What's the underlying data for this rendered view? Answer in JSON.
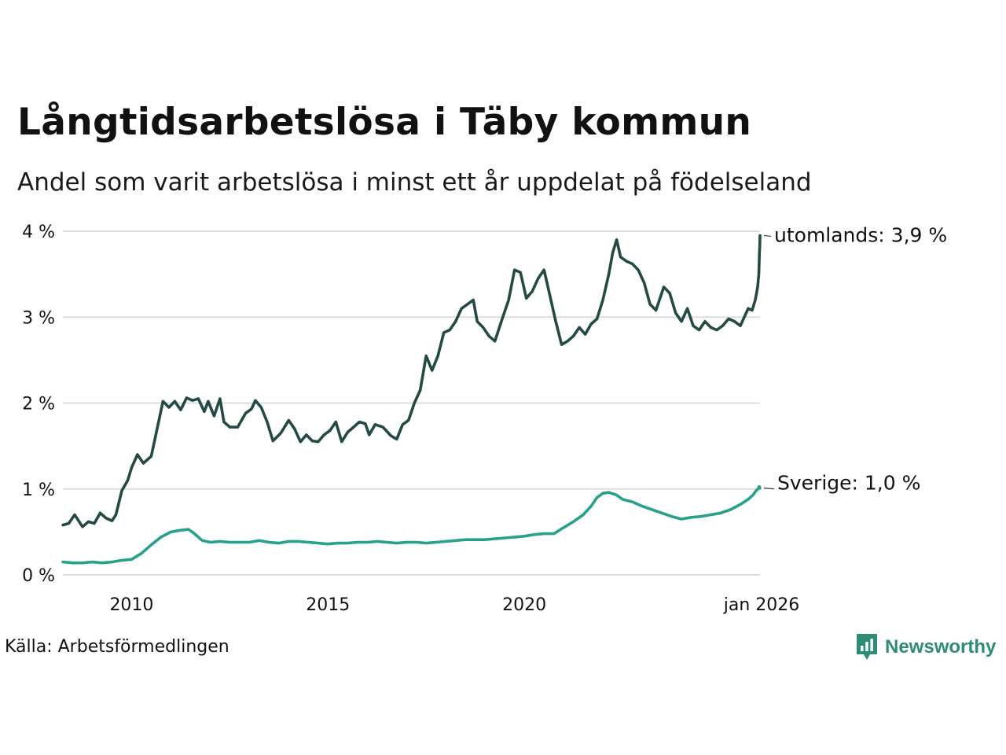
{
  "header": {
    "title": "Långtidsarbetslösa i Täby kommun",
    "subtitle": "Andel som varit arbetslösa i minst ett år uppdelat på födelseland"
  },
  "footer": {
    "source": "Källa: Arbetsförmedlingen",
    "brand": "Newsworthy"
  },
  "colors": {
    "utomlands": "#234a44",
    "sverige": "#27a08c",
    "grid": "#dddddd",
    "brand": "#2e8b76"
  },
  "chart_data": {
    "type": "line",
    "title": "Långtidsarbetslösa i Täby kommun",
    "subtitle": "Andel som varit arbetslösa i minst ett år uppdelat på födelseland",
    "ylabel": "",
    "xlabel": "",
    "ylim": [
      0,
      4
    ],
    "xlim": [
      2008.25,
      2026.0
    ],
    "grid": true,
    "y_ticks": [
      {
        "value": 0,
        "label": "0 %"
      },
      {
        "value": 1,
        "label": "1 %"
      },
      {
        "value": 2,
        "label": "2 %"
      },
      {
        "value": 3,
        "label": "3 %"
      },
      {
        "value": 4,
        "label": "4 %"
      }
    ],
    "x_ticks": [
      {
        "value": 2010,
        "label": "2010"
      },
      {
        "value": 2015,
        "label": "2015"
      },
      {
        "value": 2020,
        "label": "2020"
      },
      {
        "value": 2026,
        "label": "jan 2026"
      }
    ],
    "series": [
      {
        "name": "utomlands",
        "end_label": "utomlands: 3,9 %",
        "points": [
          [
            2008.25,
            0.58
          ],
          [
            2008.4,
            0.6
          ],
          [
            2008.55,
            0.7
          ],
          [
            2008.75,
            0.56
          ],
          [
            2008.9,
            0.62
          ],
          [
            2009.05,
            0.6
          ],
          [
            2009.2,
            0.72
          ],
          [
            2009.35,
            0.66
          ],
          [
            2009.5,
            0.63
          ],
          [
            2009.6,
            0.7
          ],
          [
            2009.75,
            0.98
          ],
          [
            2009.9,
            1.1
          ],
          [
            2010.0,
            1.25
          ],
          [
            2010.15,
            1.4
          ],
          [
            2010.3,
            1.3
          ],
          [
            2010.5,
            1.38
          ],
          [
            2010.65,
            1.7
          ],
          [
            2010.8,
            2.02
          ],
          [
            2010.95,
            1.95
          ],
          [
            2011.1,
            2.02
          ],
          [
            2011.25,
            1.92
          ],
          [
            2011.4,
            2.06
          ],
          [
            2011.55,
            2.03
          ],
          [
            2011.7,
            2.05
          ],
          [
            2011.85,
            1.9
          ],
          [
            2011.95,
            2.02
          ],
          [
            2012.1,
            1.85
          ],
          [
            2012.25,
            2.05
          ],
          [
            2012.35,
            1.78
          ],
          [
            2012.5,
            1.72
          ],
          [
            2012.7,
            1.72
          ],
          [
            2012.9,
            1.88
          ],
          [
            2013.05,
            1.93
          ],
          [
            2013.15,
            2.03
          ],
          [
            2013.3,
            1.95
          ],
          [
            2013.45,
            1.78
          ],
          [
            2013.6,
            1.56
          ],
          [
            2013.8,
            1.65
          ],
          [
            2014.0,
            1.8
          ],
          [
            2014.15,
            1.7
          ],
          [
            2014.3,
            1.55
          ],
          [
            2014.45,
            1.63
          ],
          [
            2014.6,
            1.56
          ],
          [
            2014.75,
            1.55
          ],
          [
            2014.9,
            1.63
          ],
          [
            2015.05,
            1.68
          ],
          [
            2015.2,
            1.78
          ],
          [
            2015.35,
            1.55
          ],
          [
            2015.5,
            1.66
          ],
          [
            2015.65,
            1.72
          ],
          [
            2015.8,
            1.78
          ],
          [
            2015.95,
            1.76
          ],
          [
            2016.05,
            1.63
          ],
          [
            2016.2,
            1.75
          ],
          [
            2016.4,
            1.72
          ],
          [
            2016.6,
            1.62
          ],
          [
            2016.75,
            1.58
          ],
          [
            2016.9,
            1.75
          ],
          [
            2017.05,
            1.8
          ],
          [
            2017.2,
            2.0
          ],
          [
            2017.35,
            2.15
          ],
          [
            2017.5,
            2.55
          ],
          [
            2017.65,
            2.38
          ],
          [
            2017.8,
            2.55
          ],
          [
            2017.95,
            2.82
          ],
          [
            2018.1,
            2.85
          ],
          [
            2018.25,
            2.95
          ],
          [
            2018.4,
            3.1
          ],
          [
            2018.55,
            3.15
          ],
          [
            2018.7,
            3.2
          ],
          [
            2018.8,
            2.95
          ],
          [
            2018.95,
            2.88
          ],
          [
            2019.1,
            2.78
          ],
          [
            2019.25,
            2.72
          ],
          [
            2019.45,
            3.0
          ],
          [
            2019.6,
            3.2
          ],
          [
            2019.75,
            3.55
          ],
          [
            2019.9,
            3.52
          ],
          [
            2020.05,
            3.22
          ],
          [
            2020.2,
            3.3
          ],
          [
            2020.35,
            3.45
          ],
          [
            2020.5,
            3.55
          ],
          [
            2020.65,
            3.25
          ],
          [
            2020.8,
            2.95
          ],
          [
            2020.95,
            2.68
          ],
          [
            2021.1,
            2.72
          ],
          [
            2021.25,
            2.78
          ],
          [
            2021.4,
            2.88
          ],
          [
            2021.55,
            2.8
          ],
          [
            2021.7,
            2.92
          ],
          [
            2021.85,
            2.98
          ],
          [
            2022.0,
            3.2
          ],
          [
            2022.15,
            3.5
          ],
          [
            2022.25,
            3.75
          ],
          [
            2022.35,
            3.9
          ],
          [
            2022.45,
            3.7
          ],
          [
            2022.6,
            3.65
          ],
          [
            2022.75,
            3.62
          ],
          [
            2022.9,
            3.55
          ],
          [
            2023.05,
            3.4
          ],
          [
            2023.2,
            3.15
          ],
          [
            2023.35,
            3.08
          ],
          [
            2023.55,
            3.35
          ],
          [
            2023.7,
            3.28
          ],
          [
            2023.85,
            3.05
          ],
          [
            2024.0,
            2.95
          ],
          [
            2024.15,
            3.1
          ],
          [
            2024.3,
            2.9
          ],
          [
            2024.45,
            2.85
          ],
          [
            2024.6,
            2.95
          ],
          [
            2024.75,
            2.88
          ],
          [
            2024.9,
            2.85
          ],
          [
            2025.05,
            2.9
          ],
          [
            2025.2,
            2.98
          ],
          [
            2025.35,
            2.95
          ],
          [
            2025.5,
            2.9
          ],
          [
            2025.6,
            3.0
          ],
          [
            2025.7,
            3.1
          ],
          [
            2025.8,
            3.08
          ],
          [
            2025.88,
            3.2
          ],
          [
            2025.94,
            3.35
          ],
          [
            2025.97,
            3.5
          ],
          [
            2025.985,
            3.75
          ],
          [
            2025.995,
            3.85
          ],
          [
            2026.0,
            3.95
          ]
        ]
      },
      {
        "name": "Sverige",
        "end_label": "Sverige: 1,0 %",
        "points": [
          [
            2008.25,
            0.15
          ],
          [
            2008.5,
            0.14
          ],
          [
            2008.75,
            0.14
          ],
          [
            2009.0,
            0.15
          ],
          [
            2009.25,
            0.14
          ],
          [
            2009.5,
            0.15
          ],
          [
            2009.75,
            0.17
          ],
          [
            2010.0,
            0.18
          ],
          [
            2010.25,
            0.25
          ],
          [
            2010.5,
            0.35
          ],
          [
            2010.75,
            0.44
          ],
          [
            2011.0,
            0.5
          ],
          [
            2011.25,
            0.52
          ],
          [
            2011.45,
            0.53
          ],
          [
            2011.6,
            0.48
          ],
          [
            2011.8,
            0.4
          ],
          [
            2012.0,
            0.38
          ],
          [
            2012.25,
            0.39
          ],
          [
            2012.5,
            0.38
          ],
          [
            2012.75,
            0.38
          ],
          [
            2013.0,
            0.38
          ],
          [
            2013.25,
            0.4
          ],
          [
            2013.5,
            0.38
          ],
          [
            2013.75,
            0.37
          ],
          [
            2014.0,
            0.39
          ],
          [
            2014.25,
            0.39
          ],
          [
            2014.5,
            0.38
          ],
          [
            2014.75,
            0.37
          ],
          [
            2015.0,
            0.36
          ],
          [
            2015.25,
            0.37
          ],
          [
            2015.5,
            0.37
          ],
          [
            2015.75,
            0.38
          ],
          [
            2016.0,
            0.38
          ],
          [
            2016.25,
            0.39
          ],
          [
            2016.5,
            0.38
          ],
          [
            2016.75,
            0.37
          ],
          [
            2017.0,
            0.38
          ],
          [
            2017.25,
            0.38
          ],
          [
            2017.5,
            0.37
          ],
          [
            2017.75,
            0.38
          ],
          [
            2018.0,
            0.39
          ],
          [
            2018.25,
            0.4
          ],
          [
            2018.5,
            0.41
          ],
          [
            2018.75,
            0.41
          ],
          [
            2019.0,
            0.41
          ],
          [
            2019.25,
            0.42
          ],
          [
            2019.5,
            0.43
          ],
          [
            2019.75,
            0.44
          ],
          [
            2020.0,
            0.45
          ],
          [
            2020.25,
            0.47
          ],
          [
            2020.5,
            0.48
          ],
          [
            2020.75,
            0.48
          ],
          [
            2021.0,
            0.55
          ],
          [
            2021.25,
            0.62
          ],
          [
            2021.5,
            0.7
          ],
          [
            2021.7,
            0.8
          ],
          [
            2021.85,
            0.9
          ],
          [
            2022.0,
            0.95
          ],
          [
            2022.15,
            0.96
          ],
          [
            2022.35,
            0.93
          ],
          [
            2022.5,
            0.88
          ],
          [
            2022.75,
            0.85
          ],
          [
            2023.0,
            0.8
          ],
          [
            2023.25,
            0.76
          ],
          [
            2023.5,
            0.72
          ],
          [
            2023.75,
            0.68
          ],
          [
            2024.0,
            0.65
          ],
          [
            2024.25,
            0.67
          ],
          [
            2024.5,
            0.68
          ],
          [
            2024.75,
            0.7
          ],
          [
            2025.0,
            0.72
          ],
          [
            2025.25,
            0.76
          ],
          [
            2025.5,
            0.82
          ],
          [
            2025.7,
            0.88
          ],
          [
            2025.82,
            0.93
          ],
          [
            2025.9,
            0.98
          ],
          [
            2025.95,
            1.0
          ],
          [
            2025.98,
            1.03
          ],
          [
            2026.0,
            1.01
          ]
        ]
      }
    ]
  }
}
